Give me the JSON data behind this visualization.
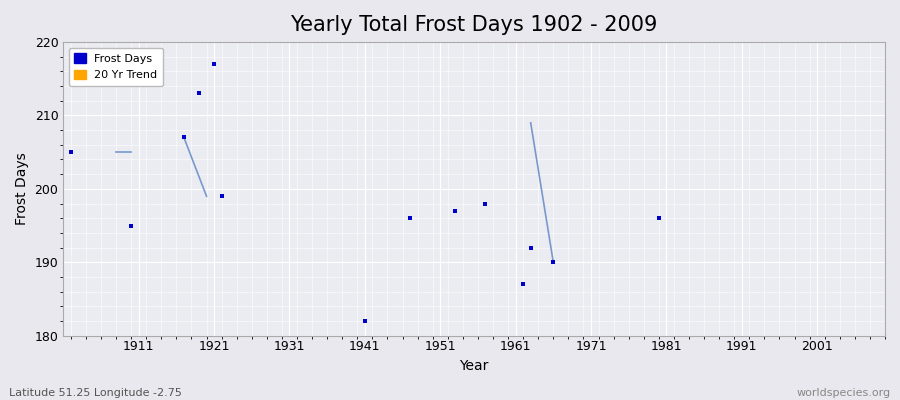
{
  "title": "Yearly Total Frost Days 1902 - 2009",
  "xlabel": "Year",
  "ylabel": "Frost Days",
  "xlim": [
    1901,
    2010
  ],
  "ylim": [
    180,
    220
  ],
  "yticks": [
    180,
    190,
    200,
    210,
    220
  ],
  "xticks": [
    1911,
    1921,
    1931,
    1941,
    1951,
    1961,
    1971,
    1981,
    1991,
    2001
  ],
  "scatter_x": [
    1902,
    1910,
    1917,
    1922,
    1941,
    1947,
    1953,
    1957,
    1962,
    1963,
    1966,
    1980
  ],
  "scatter_y": [
    205,
    195,
    207,
    199,
    182,
    196,
    197,
    198,
    187,
    192,
    190,
    196
  ],
  "high_points_x": [
    1919,
    1921
  ],
  "high_points_y": [
    213,
    217
  ],
  "trend_segments": [
    {
      "x": [
        1908,
        1910
      ],
      "y": [
        205,
        205
      ]
    },
    {
      "x": [
        1917,
        1920
      ],
      "y": [
        207,
        199
      ]
    },
    {
      "x": [
        1963,
        1966
      ],
      "y": [
        209,
        190
      ]
    }
  ],
  "scatter_color": "#0000cc",
  "trend_color": "#7799cc",
  "bg_color": "#e8e8ee",
  "plot_bg": "#ebebf2",
  "grid_color": "#ffffff",
  "legend_frost_color": "#0000cc",
  "legend_trend_color": "#ffa500",
  "footer_left": "Latitude 51.25 Longitude -2.75",
  "footer_right": "worldspecies.org",
  "title_fontsize": 15,
  "axis_fontsize": 10,
  "tick_fontsize": 9,
  "footer_fontsize": 8
}
